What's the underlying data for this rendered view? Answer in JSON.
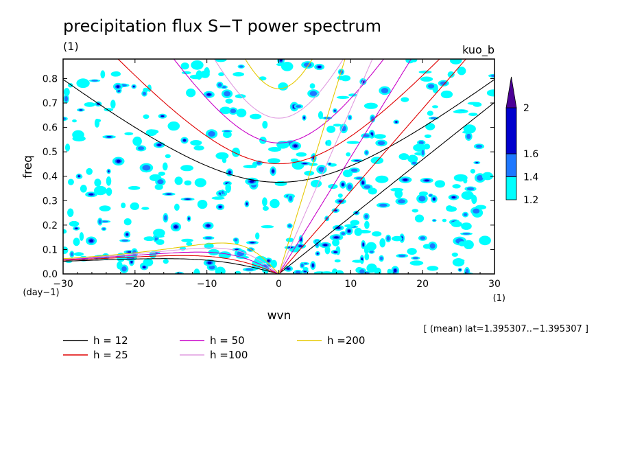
{
  "chart_data": {
    "type": "heatmap",
    "title": "precipitation flux S−T power spectrum",
    "units_label": "(1)",
    "run_label": "kuo_b",
    "xlabel": "wvn",
    "ylabel": "freq",
    "y_unit_label": "(day−1)",
    "x_unit_label": "(1)",
    "note": "[ (mean) lat=1.395307..−1.395307 ]",
    "xlim": [
      -30,
      30
    ],
    "ylim": [
      0,
      0.88
    ],
    "x_ticks": [
      "−30",
      "−20",
      "−10",
      "0",
      "10",
      "20",
      "30"
    ],
    "x_tick_values": [
      -30,
      -20,
      -10,
      0,
      10,
      20,
      30
    ],
    "y_ticks": [
      "0.0",
      "0.1",
      "0.2",
      "0.3",
      "0.4",
      "0.5",
      "0.6",
      "0.7",
      "0.8"
    ],
    "y_tick_values": [
      0,
      0.1,
      0.2,
      0.3,
      0.4,
      0.5,
      0.6,
      0.7,
      0.8
    ],
    "colorbar": {
      "levels": [
        "1.2",
        "1.4",
        "1.6",
        "2"
      ],
      "level_values": [
        1.2,
        1.4,
        1.6,
        2.0
      ],
      "colors": [
        "#00ffff",
        "#1e78ff",
        "#0000cd",
        "#4b0096"
      ]
    },
    "dispersion_curves": [
      {
        "label": "h = 12",
        "h": 12,
        "color": "#000000"
      },
      {
        "label": "h = 25",
        "h": 25,
        "color": "#e00000"
      },
      {
        "label": "h = 50",
        "h": 50,
        "color": "#c800c8"
      },
      {
        "label": "h =100",
        "h": 100,
        "color": "#e09be0"
      },
      {
        "label": "h =200",
        "h": 200,
        "color": "#e6c800"
      }
    ]
  }
}
